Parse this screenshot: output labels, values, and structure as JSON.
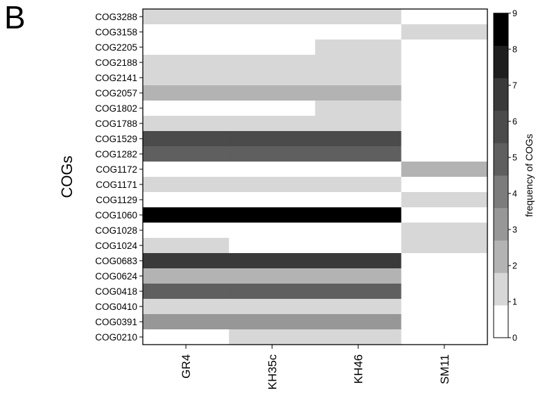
{
  "panel_label": "B",
  "chart_data": {
    "type": "heatmap",
    "ylabel": "COGs",
    "x": [
      "GR4",
      "KH35c",
      "KH46",
      "SM11"
    ],
    "y": [
      "COG3288",
      "COG3158",
      "COG2205",
      "COG2188",
      "COG2141",
      "COG2057",
      "COG1802",
      "COG1788",
      "COG1529",
      "COG1282",
      "COG1172",
      "COG1171",
      "COG1129",
      "COG1060",
      "COG1028",
      "COG1024",
      "COG0683",
      "COG0624",
      "COG0418",
      "COG0410",
      "COG0391",
      "COG0210"
    ],
    "values": [
      [
        1,
        1,
        1,
        0
      ],
      [
        0,
        0,
        0,
        1
      ],
      [
        0,
        0,
        1,
        0
      ],
      [
        1,
        1,
        1,
        0
      ],
      [
        1,
        1,
        1,
        0
      ],
      [
        2,
        2,
        2,
        0
      ],
      [
        0,
        0,
        1,
        0
      ],
      [
        1,
        1,
        1,
        0
      ],
      [
        6,
        6,
        6,
        0
      ],
      [
        5,
        5,
        5,
        0
      ],
      [
        0,
        0,
        0,
        2
      ],
      [
        1,
        1,
        1,
        0
      ],
      [
        0,
        0,
        0,
        1
      ],
      [
        9,
        9,
        9,
        0
      ],
      [
        0,
        0,
        0,
        1
      ],
      [
        1,
        0,
        0,
        1
      ],
      [
        7,
        7,
        7,
        0
      ],
      [
        2,
        2,
        2,
        0
      ],
      [
        5,
        5,
        5,
        0
      ],
      [
        1,
        1,
        1,
        0
      ],
      [
        3,
        3,
        3,
        0
      ],
      [
        0,
        1,
        1,
        0
      ]
    ],
    "colorbar": {
      "label": "frequency of COGs",
      "range": [
        0,
        9
      ],
      "ticks": [
        "0",
        "1",
        "2",
        "3",
        "4",
        "5",
        "6",
        "7",
        "8",
        "9"
      ],
      "colors": [
        "#ffffff",
        "#d7d7d7",
        "#b3b3b3",
        "#979797",
        "#7c7c7c",
        "#5f5f5f",
        "#4b4b4b",
        "#3a3a3a",
        "#1e1e1e",
        "#000000"
      ]
    }
  }
}
